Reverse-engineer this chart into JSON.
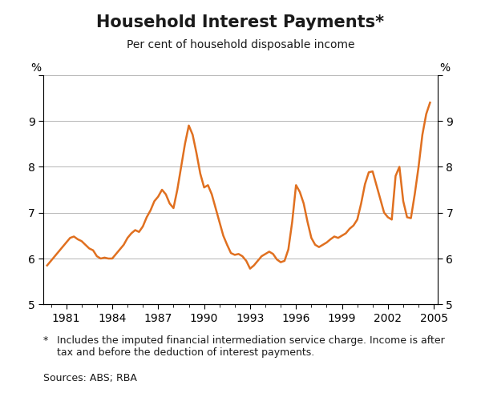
{
  "title": "Household Interest Payments*",
  "subtitle": "Per cent of household disposable income",
  "ylabel_left": "%",
  "ylabel_right": "%",
  "footnote_star": "*",
  "footnote_text": "  Includes the imputed financial intermediation service charge. Income is after\n   tax and before the deduction of interest payments.",
  "sources": "Sources: ABS; RBA",
  "ylim": [
    5,
    10
  ],
  "yticks": [
    5,
    6,
    7,
    8,
    9,
    10
  ],
  "line_color": "#E07020",
  "line_width": 1.8,
  "background_color": "#ffffff",
  "data": {
    "x": [
      1979.75,
      1980.0,
      1980.25,
      1980.5,
      1980.75,
      1981.0,
      1981.25,
      1981.5,
      1981.75,
      1982.0,
      1982.25,
      1982.5,
      1982.75,
      1983.0,
      1983.25,
      1983.5,
      1983.75,
      1984.0,
      1984.25,
      1984.5,
      1984.75,
      1985.0,
      1985.25,
      1985.5,
      1985.75,
      1986.0,
      1986.25,
      1986.5,
      1986.75,
      1987.0,
      1987.25,
      1987.5,
      1987.75,
      1988.0,
      1988.25,
      1988.5,
      1988.75,
      1989.0,
      1989.25,
      1989.5,
      1989.75,
      1990.0,
      1990.25,
      1990.5,
      1990.75,
      1991.0,
      1991.25,
      1991.5,
      1991.75,
      1992.0,
      1992.25,
      1992.5,
      1992.75,
      1993.0,
      1993.25,
      1993.5,
      1993.75,
      1994.0,
      1994.25,
      1994.5,
      1994.75,
      1995.0,
      1995.25,
      1995.5,
      1995.75,
      1996.0,
      1996.25,
      1996.5,
      1996.75,
      1997.0,
      1997.25,
      1997.5,
      1997.75,
      1998.0,
      1998.25,
      1998.5,
      1998.75,
      1999.0,
      1999.25,
      1999.5,
      1999.75,
      2000.0,
      2000.25,
      2000.5,
      2000.75,
      2001.0,
      2001.25,
      2001.5,
      2001.75,
      2002.0,
      2002.25,
      2002.5,
      2002.75,
      2003.0,
      2003.25,
      2003.5,
      2003.75,
      2004.0,
      2004.25,
      2004.5,
      2004.75
    ],
    "y": [
      5.85,
      5.95,
      6.05,
      6.15,
      6.25,
      6.35,
      6.45,
      6.48,
      6.42,
      6.38,
      6.3,
      6.22,
      6.18,
      6.05,
      6.0,
      6.02,
      6.0,
      6.0,
      6.1,
      6.2,
      6.3,
      6.45,
      6.55,
      6.62,
      6.58,
      6.7,
      6.9,
      7.05,
      7.25,
      7.35,
      7.5,
      7.4,
      7.2,
      7.1,
      7.5,
      8.0,
      8.5,
      8.9,
      8.7,
      8.3,
      7.85,
      7.55,
      7.6,
      7.4,
      7.1,
      6.8,
      6.5,
      6.3,
      6.12,
      6.08,
      6.1,
      6.05,
      5.95,
      5.78,
      5.85,
      5.95,
      6.05,
      6.1,
      6.15,
      6.1,
      5.98,
      5.92,
      5.95,
      6.2,
      6.8,
      7.6,
      7.45,
      7.2,
      6.8,
      6.45,
      6.3,
      6.25,
      6.3,
      6.35,
      6.42,
      6.48,
      6.45,
      6.5,
      6.55,
      6.65,
      6.72,
      6.85,
      7.2,
      7.62,
      7.88,
      7.9,
      7.6,
      7.3,
      7.0,
      6.9,
      6.85,
      7.8,
      8.0,
      7.25,
      6.9,
      6.88,
      7.4,
      8.0,
      8.7,
      9.15,
      9.4
    ]
  },
  "xticks": [
    1981,
    1984,
    1987,
    1990,
    1993,
    1996,
    1999,
    2002,
    2005
  ],
  "xlim": [
    1979.5,
    2005.25
  ],
  "title_fontsize": 15,
  "subtitle_fontsize": 10,
  "tick_fontsize": 10,
  "footnote_fontsize": 9,
  "sources_fontsize": 9
}
